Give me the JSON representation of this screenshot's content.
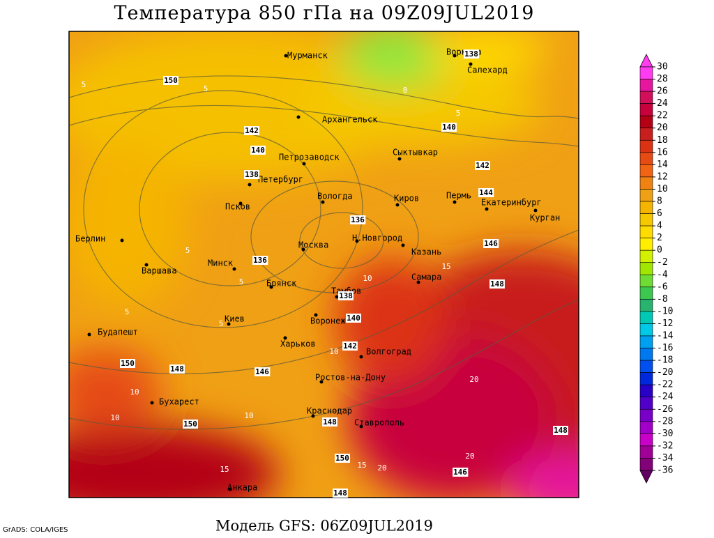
{
  "title": "Температура 850 гПа на 09Z09JUL2019",
  "footer": "Модель GFS: 06Z09JUL2019",
  "credit": "GrADS: COLA/IGES",
  "cities": [
    "Мурманск",
    "Архангельск",
    "Воркута",
    "Салехард",
    "Сыктывкар",
    "Петрозаводск",
    "Петербург",
    "Вологда",
    "Киров",
    "Пермь",
    "Екатеринбург",
    "Курган",
    "Псков",
    "Берлин",
    "Москва",
    "Н.Новгород",
    "Казань",
    "Варшава",
    "Минск",
    "Брянск",
    "Самара",
    "Тамбов",
    "Воронеж",
    "Киев",
    "Харьков",
    "Волгоград",
    "Будапешт",
    "Ростов-на-Дону",
    "Бухарест",
    "Краснодар",
    "Ставрополь",
    "Анкара"
  ],
  "contour_labels": [
    150,
    142,
    140,
    138,
    136,
    136,
    138,
    140,
    142,
    146,
    148,
    150,
    150,
    148,
    150,
    148,
    146,
    148,
    148,
    146,
    144,
    142,
    140,
    138,
    5,
    0,
    5,
    10,
    15,
    10,
    20,
    20,
    20,
    15,
    15,
    10,
    10,
    10,
    5,
    5,
    5,
    5,
    5
  ],
  "colorbar": {
    "levels": [
      30,
      28,
      26,
      24,
      22,
      20,
      18,
      16,
      14,
      12,
      10,
      8,
      6,
      4,
      2,
      0,
      -2,
      -4,
      -6,
      -8,
      -10,
      -12,
      -14,
      -16,
      -18,
      -20,
      -22,
      -24,
      -26,
      -28,
      -30,
      -32,
      -34,
      -36
    ],
    "colors": [
      "#ff3cf0",
      "#e6169e",
      "#d2105a",
      "#c8003c",
      "#b40014",
      "#c81e1e",
      "#dc3214",
      "#e64b14",
      "#f06414",
      "#f08214",
      "#f0a014",
      "#f5b400",
      "#f5c800",
      "#ffdc00",
      "#ffee00",
      "#d2f000",
      "#a0e600",
      "#6edc32",
      "#3cc850",
      "#28b46e",
      "#00c8b4",
      "#00c8e6",
      "#00a0f0",
      "#0078f0",
      "#0050f0",
      "#0028dc",
      "#2800c8",
      "#5000c8",
      "#7800c8",
      "#a000c8",
      "#c800c8",
      "#a00096",
      "#820078",
      "#640064"
    ]
  }
}
